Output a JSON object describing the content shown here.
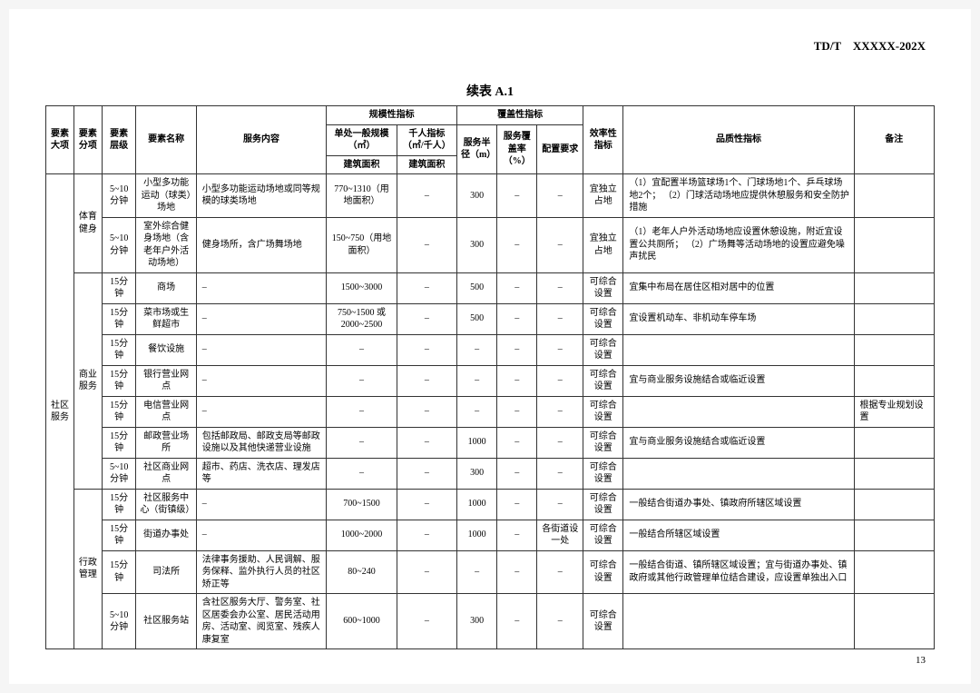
{
  "doc_id": "TD/T　XXXXX-202X",
  "title": "续表 A.1",
  "page_number": "13",
  "head": {
    "c1": "要素大项",
    "c2": "要素分项",
    "c3": "要素层级",
    "c4": "要素名称",
    "c5": "服务内容",
    "g_scale": "规模性指标",
    "g_cover": "覆盖性指标",
    "c6a": "单处一般规模（㎡）",
    "c6b": "建筑面积",
    "c7a": "千人指标（㎡/千人）",
    "c7b": "建筑面积",
    "c8": "服务半径（m）",
    "c9": "服务覆盖率（%）",
    "c10": "配置要求",
    "c11": "效率性指标",
    "c12": "品质性指标",
    "c13": "备注"
  },
  "major": "社区服务",
  "sub1": "体育健身",
  "sub2": "商业服务",
  "sub3": "行政管理",
  "rows": [
    {
      "lvl": "5~10分钟",
      "name": "小型多功能运动（球类）场地",
      "svc": "小型多功能运动场地或同等规模的球类场地",
      "scale": "770~1310（用地面积）",
      "per": "–",
      "rad": "300",
      "cov": "–",
      "cfg": "–",
      "eff": "宜独立占地",
      "qual": "（1）宜配置半场篮球场1个、门球场地1个、乒乓球场地2个；\n（2）门球活动场地应提供休憩服务和安全防护措施",
      "note": ""
    },
    {
      "lvl": "5~10分钟",
      "name": "室外综合健身场地（含老年户外活动场地）",
      "svc": "健身场所，含广场舞场地",
      "scale": "150~750（用地面积）",
      "per": "–",
      "rad": "300",
      "cov": "–",
      "cfg": "–",
      "eff": "宜独立占地",
      "qual": "（1）老年人户外活动场地应设置休憩设施，附近宜设置公共厕所；\n（2）广场舞等活动场地的设置应避免噪声扰民",
      "note": ""
    },
    {
      "lvl": "15分钟",
      "name": "商场",
      "svc": "–",
      "scale": "1500~3000",
      "per": "–",
      "rad": "500",
      "cov": "–",
      "cfg": "–",
      "eff": "可综合设置",
      "qual": "宜集中布局在居住区相对居中的位置",
      "note": ""
    },
    {
      "lvl": "15分钟",
      "name": "菜市场或生鲜超市",
      "svc": "–",
      "scale": "750~1500 或 2000~2500",
      "per": "–",
      "rad": "500",
      "cov": "–",
      "cfg": "–",
      "eff": "可综合设置",
      "qual": "宜设置机动车、非机动车停车场",
      "note": ""
    },
    {
      "lvl": "15分钟",
      "name": "餐饮设施",
      "svc": "–",
      "scale": "–",
      "per": "–",
      "rad": "–",
      "cov": "–",
      "cfg": "–",
      "eff": "可综合设置",
      "qual": "",
      "note": ""
    },
    {
      "lvl": "15分钟",
      "name": "银行营业网点",
      "svc": "–",
      "scale": "–",
      "per": "–",
      "rad": "–",
      "cov": "–",
      "cfg": "–",
      "eff": "可综合设置",
      "qual": "宜与商业服务设施结合或临近设置",
      "note": ""
    },
    {
      "lvl": "15分钟",
      "name": "电信营业网点",
      "svc": "–",
      "scale": "–",
      "per": "–",
      "rad": "–",
      "cov": "–",
      "cfg": "–",
      "eff": "可综合设置",
      "qual": "",
      "note": "根据专业规划设置"
    },
    {
      "lvl": "15分钟",
      "name": "邮政营业场所",
      "svc": "包括邮政局、邮政支局等邮政设施以及其他快递营业设施",
      "scale": "–",
      "per": "–",
      "rad": "1000",
      "cov": "–",
      "cfg": "–",
      "eff": "可综合设置",
      "qual": "宜与商业服务设施结合或临近设置",
      "note": ""
    },
    {
      "lvl": "5~10分钟",
      "name": "社区商业网点",
      "svc": "超市、药店、洗衣店、理发店等",
      "scale": "–",
      "per": "–",
      "rad": "300",
      "cov": "–",
      "cfg": "–",
      "eff": "可综合设置",
      "qual": "",
      "note": ""
    },
    {
      "lvl": "15分钟",
      "name": "社区服务中心（街镇级）",
      "svc": "–",
      "scale": "700~1500",
      "per": "–",
      "rad": "1000",
      "cov": "–",
      "cfg": "–",
      "eff": "可综合设置",
      "qual": "一般结合街道办事处、镇政府所辖区域设置",
      "note": ""
    },
    {
      "lvl": "15分钟",
      "name": "街道办事处",
      "svc": "–",
      "scale": "1000~2000",
      "per": "–",
      "rad": "1000",
      "cov": "–",
      "cfg": "各街道设一处",
      "eff": "可综合设置",
      "qual": "一般结合所辖区域设置",
      "note": ""
    },
    {
      "lvl": "15分钟",
      "name": "司法所",
      "svc": "法律事务援助、人民调解、服务保释、监外执行人员的社区矫正等",
      "scale": "80~240",
      "per": "–",
      "rad": "–",
      "cov": "–",
      "cfg": "–",
      "eff": "可综合设置",
      "qual": "一般结合街道、镇所辖区域设置；宜与街道办事处、镇政府或其他行政管理单位结合建设，应设置单独出入口",
      "note": ""
    },
    {
      "lvl": "5~10分钟",
      "name": "社区服务站",
      "svc": "含社区服务大厅、警务室、社区居委会办公室、居民活动用房、活动室、阅览室、残疾人康复室",
      "scale": "600~1000",
      "per": "–",
      "rad": "300",
      "cov": "–",
      "cfg": "–",
      "eff": "可综合设置",
      "qual": "",
      "note": ""
    }
  ]
}
